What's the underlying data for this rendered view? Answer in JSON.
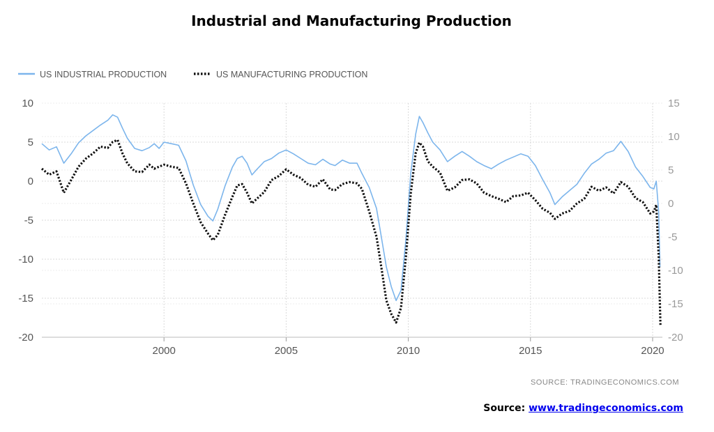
{
  "title": "Industrial and Manufacturing Production",
  "footer": {
    "label": "Source:",
    "link_text": "www.tradingeconomics.com"
  },
  "chart_data": {
    "type": "line",
    "title": "Industrial and Manufacturing Production",
    "source_note": "SOURCE:   TRADINGECONOMICS.COM",
    "legend_position": "top-left",
    "grid": true,
    "x_ticks": [
      "2000",
      "2005",
      "2010",
      "2015",
      "2020"
    ],
    "xlim": [
      1995.0,
      2020.4
    ],
    "left_axis": {
      "ylim": [
        -20,
        10
      ],
      "ticks": [
        "10",
        "5",
        "0",
        "-5",
        "-10",
        "-15",
        "-20"
      ]
    },
    "right_axis": {
      "ylim": [
        -20,
        15
      ],
      "ticks": [
        "15",
        "10",
        "5",
        "0",
        "-5",
        "-10",
        "-15",
        "-20"
      ]
    },
    "colors": {
      "industrial": "#7cb5ec",
      "manufacturing": "#111111",
      "grid": "#d9d9d9"
    },
    "series": [
      {
        "name": "US INDUSTRIAL PRODUCTION",
        "axis": "left",
        "style": "solid",
        "points": [
          [
            1995.0,
            4.8
          ],
          [
            1995.3,
            4.0
          ],
          [
            1995.6,
            4.4
          ],
          [
            1995.9,
            2.3
          ],
          [
            1996.2,
            3.5
          ],
          [
            1996.5,
            4.9
          ],
          [
            1996.8,
            5.8
          ],
          [
            1997.1,
            6.5
          ],
          [
            1997.4,
            7.2
          ],
          [
            1997.7,
            7.8
          ],
          [
            1997.9,
            8.5
          ],
          [
            1998.1,
            8.2
          ],
          [
            1998.3,
            6.8
          ],
          [
            1998.5,
            5.5
          ],
          [
            1998.8,
            4.2
          ],
          [
            1999.1,
            3.9
          ],
          [
            1999.4,
            4.3
          ],
          [
            1999.6,
            4.8
          ],
          [
            1999.8,
            4.2
          ],
          [
            2000.0,
            5.0
          ],
          [
            2000.3,
            4.8
          ],
          [
            2000.6,
            4.6
          ],
          [
            2000.9,
            2.6
          ],
          [
            2001.2,
            -0.5
          ],
          [
            2001.5,
            -3.0
          ],
          [
            2001.8,
            -4.5
          ],
          [
            2002.0,
            -5.1
          ],
          [
            2002.2,
            -3.6
          ],
          [
            2002.5,
            -0.6
          ],
          [
            2002.8,
            1.8
          ],
          [
            2003.0,
            2.9
          ],
          [
            2003.2,
            3.2
          ],
          [
            2003.4,
            2.3
          ],
          [
            2003.6,
            0.8
          ],
          [
            2003.8,
            1.5
          ],
          [
            2004.1,
            2.5
          ],
          [
            2004.4,
            2.9
          ],
          [
            2004.7,
            3.6
          ],
          [
            2005.0,
            4.0
          ],
          [
            2005.3,
            3.5
          ],
          [
            2005.6,
            2.9
          ],
          [
            2005.9,
            2.3
          ],
          [
            2006.2,
            2.1
          ],
          [
            2006.5,
            2.8
          ],
          [
            2006.8,
            2.2
          ],
          [
            2007.0,
            2.0
          ],
          [
            2007.3,
            2.7
          ],
          [
            2007.6,
            2.3
          ],
          [
            2007.9,
            2.3
          ],
          [
            2008.1,
            1.0
          ],
          [
            2008.4,
            -0.8
          ],
          [
            2008.7,
            -3.5
          ],
          [
            2008.9,
            -7.2
          ],
          [
            2009.1,
            -11.0
          ],
          [
            2009.3,
            -13.5
          ],
          [
            2009.5,
            -15.3
          ],
          [
            2009.7,
            -14.0
          ],
          [
            2009.9,
            -7.5
          ],
          [
            2010.1,
            1.0
          ],
          [
            2010.3,
            6.0
          ],
          [
            2010.45,
            8.3
          ],
          [
            2010.6,
            7.5
          ],
          [
            2010.8,
            6.2
          ],
          [
            2011.0,
            5.0
          ],
          [
            2011.3,
            4.0
          ],
          [
            2011.6,
            2.5
          ],
          [
            2011.9,
            3.2
          ],
          [
            2012.2,
            3.8
          ],
          [
            2012.5,
            3.2
          ],
          [
            2012.8,
            2.5
          ],
          [
            2013.1,
            2.0
          ],
          [
            2013.4,
            1.6
          ],
          [
            2013.7,
            2.2
          ],
          [
            2014.0,
            2.7
          ],
          [
            2014.3,
            3.1
          ],
          [
            2014.6,
            3.5
          ],
          [
            2014.9,
            3.2
          ],
          [
            2015.2,
            2.0
          ],
          [
            2015.5,
            0.2
          ],
          [
            2015.8,
            -1.5
          ],
          [
            2016.0,
            -3.0
          ],
          [
            2016.3,
            -2.0
          ],
          [
            2016.6,
            -1.2
          ],
          [
            2016.9,
            -0.4
          ],
          [
            2017.2,
            1.0
          ],
          [
            2017.5,
            2.2
          ],
          [
            2017.8,
            2.8
          ],
          [
            2018.1,
            3.6
          ],
          [
            2018.4,
            3.9
          ],
          [
            2018.7,
            5.1
          ],
          [
            2019.0,
            3.8
          ],
          [
            2019.3,
            1.8
          ],
          [
            2019.6,
            0.6
          ],
          [
            2019.9,
            -0.8
          ],
          [
            2020.05,
            -1.0
          ],
          [
            2020.15,
            0.0
          ],
          [
            2020.25,
            -4.0
          ],
          [
            2020.3,
            -11.0
          ]
        ]
      },
      {
        "name": "US MANUFACTURING PRODUCTION",
        "axis": "right",
        "style": "dotted",
        "points": [
          [
            1995.0,
            5.2
          ],
          [
            1995.3,
            4.3
          ],
          [
            1995.6,
            4.8
          ],
          [
            1995.9,
            1.6
          ],
          [
            1996.2,
            3.5
          ],
          [
            1996.5,
            5.5
          ],
          [
            1996.8,
            6.7
          ],
          [
            1997.1,
            7.5
          ],
          [
            1997.4,
            8.5
          ],
          [
            1997.7,
            8.3
          ],
          [
            1997.9,
            9.2
          ],
          [
            1998.1,
            9.5
          ],
          [
            1998.3,
            7.5
          ],
          [
            1998.5,
            6.0
          ],
          [
            1998.8,
            4.8
          ],
          [
            1999.1,
            4.7
          ],
          [
            1999.4,
            5.8
          ],
          [
            1999.6,
            5.2
          ],
          [
            1999.8,
            5.5
          ],
          [
            2000.0,
            5.8
          ],
          [
            2000.3,
            5.5
          ],
          [
            2000.6,
            5.3
          ],
          [
            2000.9,
            3.0
          ],
          [
            2001.2,
            0.0
          ],
          [
            2001.5,
            -2.8
          ],
          [
            2001.8,
            -4.5
          ],
          [
            2002.0,
            -5.5
          ],
          [
            2002.2,
            -4.7
          ],
          [
            2002.5,
            -1.7
          ],
          [
            2002.8,
            1.0
          ],
          [
            2003.0,
            2.7
          ],
          [
            2003.2,
            2.9
          ],
          [
            2003.4,
            1.6
          ],
          [
            2003.6,
            0.0
          ],
          [
            2003.8,
            0.7
          ],
          [
            2004.1,
            1.7
          ],
          [
            2004.4,
            3.5
          ],
          [
            2004.7,
            4.1
          ],
          [
            2005.0,
            5.1
          ],
          [
            2005.3,
            4.3
          ],
          [
            2005.6,
            3.8
          ],
          [
            2005.9,
            2.8
          ],
          [
            2006.2,
            2.5
          ],
          [
            2006.5,
            3.6
          ],
          [
            2006.8,
            2.1
          ],
          [
            2007.0,
            2.0
          ],
          [
            2007.3,
            2.9
          ],
          [
            2007.6,
            3.2
          ],
          [
            2007.9,
            3.0
          ],
          [
            2008.1,
            2.2
          ],
          [
            2008.4,
            -1.2
          ],
          [
            2008.7,
            -5.0
          ],
          [
            2008.9,
            -9.6
          ],
          [
            2009.1,
            -14.5
          ],
          [
            2009.3,
            -16.5
          ],
          [
            2009.5,
            -17.8
          ],
          [
            2009.7,
            -15.6
          ],
          [
            2009.9,
            -8.0
          ],
          [
            2010.1,
            1.5
          ],
          [
            2010.3,
            7.5
          ],
          [
            2010.45,
            9.1
          ],
          [
            2010.6,
            8.5
          ],
          [
            2010.8,
            6.3
          ],
          [
            2011.0,
            5.5
          ],
          [
            2011.3,
            4.6
          ],
          [
            2011.6,
            1.9
          ],
          [
            2011.9,
            2.4
          ],
          [
            2012.2,
            3.5
          ],
          [
            2012.5,
            3.6
          ],
          [
            2012.8,
            3.0
          ],
          [
            2013.1,
            1.6
          ],
          [
            2013.4,
            1.1
          ],
          [
            2013.7,
            0.7
          ],
          [
            2014.0,
            0.2
          ],
          [
            2014.3,
            1.1
          ],
          [
            2014.6,
            1.2
          ],
          [
            2014.9,
            1.6
          ],
          [
            2015.2,
            0.5
          ],
          [
            2015.5,
            -0.8
          ],
          [
            2015.8,
            -1.4
          ],
          [
            2016.0,
            -2.3
          ],
          [
            2016.3,
            -1.5
          ],
          [
            2016.6,
            -1.1
          ],
          [
            2016.9,
            0.0
          ],
          [
            2017.2,
            0.7
          ],
          [
            2017.5,
            2.5
          ],
          [
            2017.8,
            1.9
          ],
          [
            2018.1,
            2.4
          ],
          [
            2018.4,
            1.5
          ],
          [
            2018.7,
            3.2
          ],
          [
            2019.0,
            2.5
          ],
          [
            2019.3,
            0.8
          ],
          [
            2019.6,
            0.2
          ],
          [
            2019.9,
            -1.5
          ],
          [
            2020.05,
            -1.2
          ],
          [
            2020.15,
            -0.2
          ],
          [
            2020.25,
            -8.0
          ],
          [
            2020.32,
            -18.2
          ]
        ]
      }
    ]
  }
}
